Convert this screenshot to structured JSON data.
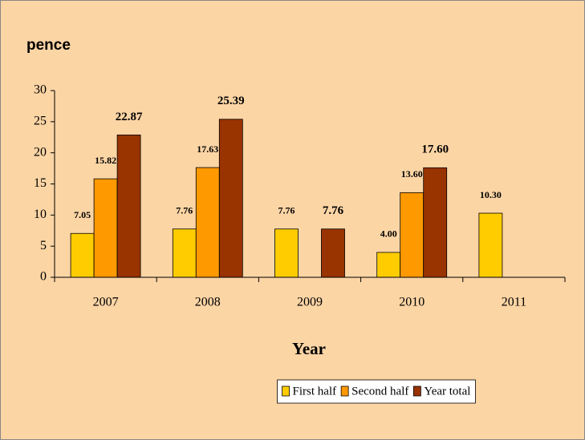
{
  "chart_data": {
    "type": "bar",
    "title": "pence",
    "x_label": "Year",
    "categories": [
      "2007",
      "2008",
      "2009",
      "2010",
      "2011"
    ],
    "series": [
      {
        "name": "First half",
        "color": "#ffcc00",
        "values": [
          7.05,
          7.76,
          7.76,
          4.0,
          10.3
        ],
        "value_labels": [
          "7.05",
          "7.76",
          "7.76",
          "4.00",
          "10.30"
        ]
      },
      {
        "name": "Second half",
        "color": "#ff9900",
        "values": [
          15.82,
          17.63,
          null,
          13.6,
          null
        ],
        "value_labels": [
          "15.82",
          "17.63",
          null,
          "13.60",
          null
        ]
      },
      {
        "name": "Year total",
        "color": "#993300",
        "values": [
          22.87,
          25.39,
          7.76,
          17.6,
          null
        ],
        "value_labels": [
          "22.87",
          "25.39",
          "7.76",
          "17.60",
          null
        ]
      }
    ],
    "ylim": [
      0,
      30
    ],
    "yticks": [
      0,
      5,
      10,
      15,
      20,
      25,
      30
    ],
    "legend": "bottom"
  }
}
